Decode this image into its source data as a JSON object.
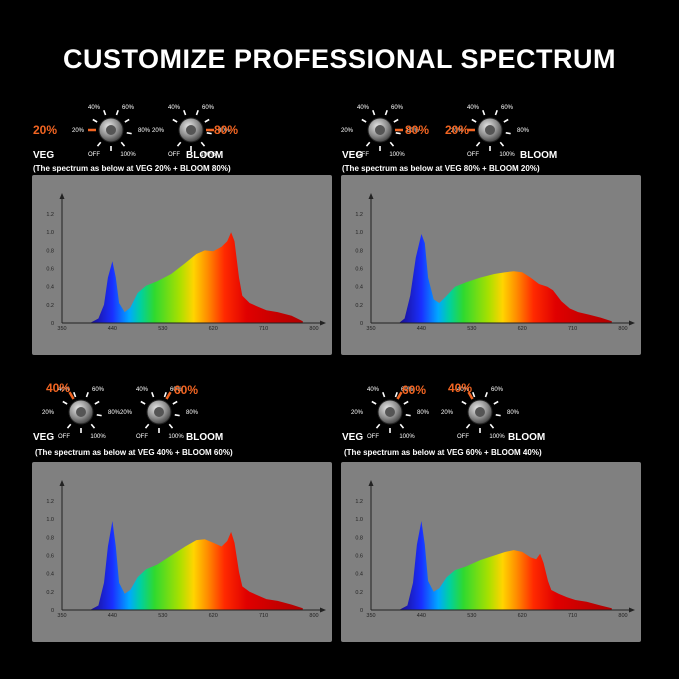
{
  "title": "CUSTOMIZE PROFESSIONAL SPECTRUM",
  "colors": {
    "accent": "#f26522",
    "chart_bg": "#808080"
  },
  "dial_labels": {
    "p40": "40%",
    "p60": "60%",
    "p20": "20%",
    "p80": "80%",
    "off": "OFF",
    "p100": "100%"
  },
  "panels": [
    {
      "veg_value": "20%",
      "bloom_value": "80%",
      "veg_label": "VEG",
      "bloom_label": "BLOOM",
      "caption": "(The spectrum as below at VEG 20% + BLOOM 80%)"
    },
    {
      "veg_value": "80%",
      "bloom_value": "20%",
      "veg_label": "VEG",
      "bloom_label": "BLOOM",
      "caption": "(The spectrum as below at VEG 80% + BLOOM 20%)"
    },
    {
      "veg_value": "40%",
      "bloom_value": "60%",
      "veg_label": "VEG",
      "bloom_label": "BLOOM",
      "caption": "(The spectrum as below at VEG 40% + BLOOM 60%)"
    },
    {
      "veg_value": "60%",
      "bloom_value": "40%",
      "veg_label": "VEG",
      "bloom_label": "BLOOM",
      "caption": "(The spectrum as below at VEG 60% + BLOOM 40%)"
    }
  ],
  "chart_data": [
    {
      "type": "area",
      "x_ticks": [
        "350",
        "440",
        "530",
        "620",
        "710",
        "800"
      ],
      "y_ticks": [
        "0",
        "0.2",
        "0.4",
        "0.6",
        "0.8",
        "1.0",
        "1.2"
      ],
      "xlim": [
        350,
        800
      ],
      "ylim": [
        0,
        1.3
      ],
      "x": [
        400,
        415,
        425,
        432,
        440,
        446,
        452,
        462,
        472,
        485,
        500,
        520,
        545,
        570,
        590,
        605,
        620,
        635,
        645,
        652,
        658,
        666,
        672,
        685,
        700,
        715,
        735,
        760,
        780
      ],
      "y": [
        0,
        0.05,
        0.2,
        0.5,
        0.68,
        0.5,
        0.22,
        0.12,
        0.17,
        0.33,
        0.41,
        0.46,
        0.54,
        0.66,
        0.76,
        0.8,
        0.79,
        0.84,
        0.9,
        1.0,
        0.9,
        0.5,
        0.3,
        0.22,
        0.18,
        0.14,
        0.12,
        0.08,
        0.02
      ]
    },
    {
      "type": "area",
      "x_ticks": [
        "350",
        "440",
        "530",
        "620",
        "710",
        "800"
      ],
      "y_ticks": [
        "0",
        "0.2",
        "0.4",
        "0.6",
        "0.8",
        "1.0",
        "1.2"
      ],
      "xlim": [
        350,
        800
      ],
      "ylim": [
        0,
        1.3
      ],
      "x": [
        400,
        410,
        420,
        430,
        440,
        446,
        452,
        462,
        472,
        485,
        500,
        520,
        545,
        570,
        590,
        605,
        620,
        635,
        650,
        665,
        675,
        690,
        705,
        720,
        740,
        760,
        780
      ],
      "y": [
        0,
        0.05,
        0.3,
        0.72,
        0.98,
        0.88,
        0.5,
        0.26,
        0.22,
        0.3,
        0.4,
        0.45,
        0.5,
        0.54,
        0.56,
        0.57,
        0.56,
        0.5,
        0.43,
        0.4,
        0.36,
        0.24,
        0.16,
        0.12,
        0.09,
        0.06,
        0.02
      ]
    },
    {
      "type": "area",
      "x_ticks": [
        "350",
        "440",
        "530",
        "620",
        "710",
        "800"
      ],
      "y_ticks": [
        "0",
        "0.2",
        "0.4",
        "0.6",
        "0.8",
        "1.0",
        "1.2"
      ],
      "xlim": [
        350,
        800
      ],
      "ylim": [
        0,
        1.3
      ],
      "x": [
        400,
        415,
        425,
        432,
        440,
        446,
        452,
        462,
        472,
        485,
        500,
        520,
        545,
        570,
        590,
        605,
        620,
        635,
        645,
        652,
        658,
        666,
        672,
        685,
        700,
        715,
        735,
        760,
        780
      ],
      "y": [
        0,
        0.05,
        0.3,
        0.7,
        0.98,
        0.7,
        0.3,
        0.18,
        0.22,
        0.36,
        0.45,
        0.5,
        0.6,
        0.7,
        0.77,
        0.78,
        0.74,
        0.7,
        0.76,
        0.86,
        0.74,
        0.42,
        0.26,
        0.2,
        0.16,
        0.12,
        0.1,
        0.06,
        0.02
      ]
    },
    {
      "type": "area",
      "x_ticks": [
        "350",
        "440",
        "530",
        "620",
        "710",
        "800"
      ],
      "y_ticks": [
        "0",
        "0.2",
        "0.4",
        "0.6",
        "0.8",
        "1.0",
        "1.2"
      ],
      "xlim": [
        350,
        800
      ],
      "ylim": [
        0,
        1.3
      ],
      "x": [
        400,
        415,
        425,
        432,
        440,
        446,
        452,
        462,
        472,
        485,
        500,
        520,
        545,
        570,
        590,
        605,
        620,
        635,
        645,
        652,
        658,
        666,
        672,
        685,
        700,
        715,
        735,
        760,
        780
      ],
      "y": [
        0,
        0.05,
        0.3,
        0.72,
        0.98,
        0.72,
        0.32,
        0.2,
        0.24,
        0.36,
        0.44,
        0.48,
        0.55,
        0.6,
        0.64,
        0.66,
        0.64,
        0.58,
        0.56,
        0.62,
        0.52,
        0.32,
        0.22,
        0.18,
        0.14,
        0.11,
        0.09,
        0.05,
        0.02
      ]
    }
  ]
}
